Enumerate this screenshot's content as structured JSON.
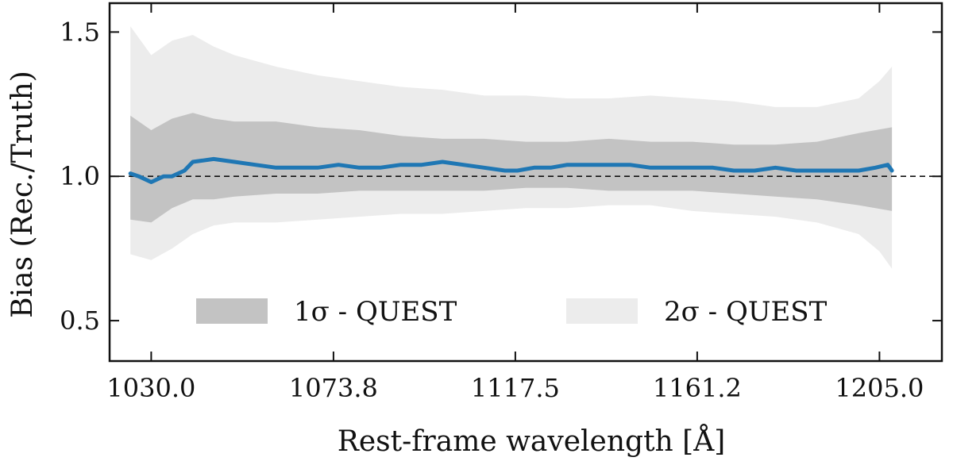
{
  "chart_data": {
    "type": "line",
    "title": "",
    "xlabel": "Rest-frame wavelength [Å]",
    "ylabel": "Bias (Rec./Truth)",
    "xlim": [
      1020.0,
      1220.0
    ],
    "ylim": [
      0.36,
      1.6
    ],
    "xticks": [
      1030.0,
      1073.8,
      1117.5,
      1161.2,
      1205.0
    ],
    "xtick_labels": [
      "1030.0",
      "1073.8",
      "1117.5",
      "1161.2",
      "1205.0"
    ],
    "yticks": [
      0.5,
      1.0,
      1.5
    ],
    "ytick_labels": [
      "0.5",
      "1.0",
      "1.5"
    ],
    "reference_line": 1.0,
    "grid": false,
    "legend_position": "lower-center",
    "colors": {
      "median": "#1f77b4",
      "band_1sigma": "#c3c3c3",
      "band_2sigma": "#ececec",
      "reference": "#111111"
    },
    "series": [
      {
        "kind": "line",
        "x": [
          1025,
          1027,
          1030,
          1033,
          1035,
          1038,
          1040,
          1045,
          1050,
          1055,
          1060,
          1065,
          1070,
          1075,
          1080,
          1085,
          1090,
          1095,
          1100,
          1105,
          1110,
          1115,
          1118,
          1122,
          1126,
          1130,
          1135,
          1140,
          1145,
          1150,
          1155,
          1160,
          1165,
          1170,
          1175,
          1180,
          1185,
          1190,
          1195,
          1200,
          1204,
          1207,
          1208
        ],
        "y": [
          1.01,
          1.0,
          0.98,
          1.0,
          1.0,
          1.02,
          1.05,
          1.06,
          1.05,
          1.04,
          1.03,
          1.03,
          1.03,
          1.04,
          1.03,
          1.03,
          1.04,
          1.04,
          1.05,
          1.04,
          1.03,
          1.02,
          1.02,
          1.03,
          1.03,
          1.04,
          1.04,
          1.04,
          1.04,
          1.03,
          1.03,
          1.03,
          1.03,
          1.02,
          1.02,
          1.03,
          1.02,
          1.02,
          1.02,
          1.02,
          1.03,
          1.04,
          1.02
        ]
      },
      {
        "kind": "band",
        "name": "1σ - QUEST",
        "x": [
          1025,
          1030,
          1035,
          1040,
          1045,
          1050,
          1060,
          1070,
          1080,
          1090,
          1100,
          1110,
          1120,
          1130,
          1140,
          1150,
          1160,
          1170,
          1180,
          1190,
          1200,
          1208
        ],
        "upper": [
          1.21,
          1.16,
          1.2,
          1.22,
          1.2,
          1.19,
          1.19,
          1.17,
          1.16,
          1.14,
          1.13,
          1.13,
          1.12,
          1.12,
          1.13,
          1.12,
          1.12,
          1.11,
          1.11,
          1.12,
          1.15,
          1.17
        ],
        "lower": [
          0.85,
          0.84,
          0.89,
          0.92,
          0.92,
          0.93,
          0.94,
          0.94,
          0.95,
          0.95,
          0.95,
          0.95,
          0.96,
          0.96,
          0.95,
          0.95,
          0.95,
          0.94,
          0.93,
          0.92,
          0.9,
          0.88
        ]
      },
      {
        "kind": "band",
        "name": "2σ - QUEST",
        "x": [
          1025,
          1030,
          1035,
          1040,
          1045,
          1050,
          1060,
          1070,
          1080,
          1090,
          1100,
          1110,
          1120,
          1130,
          1140,
          1150,
          1160,
          1170,
          1180,
          1190,
          1200,
          1205,
          1208
        ],
        "upper": [
          1.52,
          1.42,
          1.47,
          1.49,
          1.45,
          1.42,
          1.38,
          1.35,
          1.33,
          1.31,
          1.3,
          1.28,
          1.28,
          1.27,
          1.27,
          1.28,
          1.27,
          1.26,
          1.24,
          1.24,
          1.27,
          1.33,
          1.38
        ],
        "lower": [
          0.73,
          0.71,
          0.75,
          0.8,
          0.83,
          0.84,
          0.84,
          0.85,
          0.86,
          0.87,
          0.87,
          0.88,
          0.89,
          0.89,
          0.9,
          0.9,
          0.88,
          0.87,
          0.86,
          0.84,
          0.8,
          0.74,
          0.68
        ]
      }
    ]
  }
}
